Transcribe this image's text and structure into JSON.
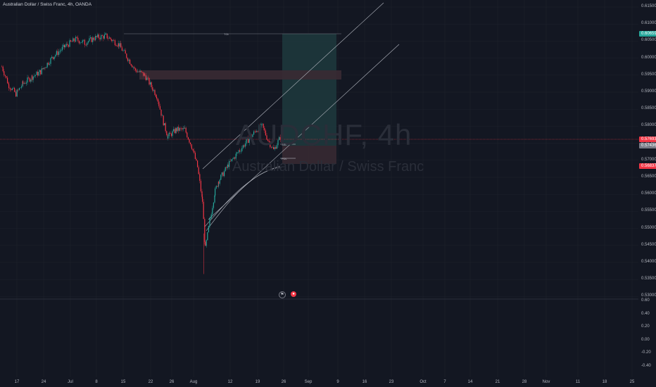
{
  "symbol_title": "Australian Dollar / Swiss Franc, 4h, OANDA",
  "watermark": {
    "ticker": "AUDCHF, 4h",
    "name": "Australian Dollar / Swiss Franc"
  },
  "price_axis": [
    "0.61500",
    "0.61000",
    "0.60500",
    "0.60000",
    "0.59500",
    "0.59000",
    "0.58500",
    "0.58000",
    "0.57500",
    "0.57000",
    "0.56500",
    "0.56000",
    "0.55500",
    "0.55000",
    "0.54500",
    "0.54000",
    "0.53500",
    "0.53000"
  ],
  "price_tags": {
    "target": "0.60659",
    "current": "0.57693",
    "countdown": "0.57436",
    "stop": "0.56837"
  },
  "indicator_axis": [
    "0.60",
    "0.40",
    "0.20",
    "0.00",
    "-0.20",
    "-0.40"
  ],
  "time_axis": [
    "17",
    "24",
    "Jul",
    "8",
    "15",
    "22",
    "26",
    "Aug",
    "12",
    "19",
    "26",
    "Sep",
    "9",
    "16",
    "23",
    "Oct",
    "7",
    "14",
    "21",
    "28",
    "Nov",
    "11",
    "18",
    "25"
  ],
  "annotations": {
    "tp_label": "TGt",
    "entry_label": "SSL",
    "sl_label": "PDL"
  },
  "icons": {
    "flag": "flag-icon",
    "logo": "tradingview-logo-icon"
  },
  "colors": {
    "background": "#131722",
    "up": "#26a69a",
    "down": "#f23645",
    "grid": "#1e222d",
    "long_zone": "#1f3a3d",
    "short_zone": "#3a2a33"
  },
  "chart_data": {
    "type": "candlestick",
    "title": "Australian Dollar / Swiss Franc, 4h, OANDA",
    "ylim": [
      0.53,
      0.615
    ],
    "x_tick_labels": [
      "17",
      "24",
      "Jul",
      "8",
      "15",
      "22",
      "26",
      "Aug",
      "12",
      "19",
      "26",
      "Sep",
      "9",
      "16",
      "23",
      "Oct",
      "7",
      "14",
      "21",
      "28",
      "Nov",
      "11",
      "18",
      "25"
    ],
    "price_path": [
      {
        "x": "Jun 10",
        "y": 0.5975
      },
      {
        "x": "Jun 14",
        "y": 0.592
      },
      {
        "x": "Jun 17",
        "y": 0.5895
      },
      {
        "x": "Jun 20",
        "y": 0.5925
      },
      {
        "x": "Jun 24",
        "y": 0.5945
      },
      {
        "x": "Jun 27",
        "y": 0.596
      },
      {
        "x": "Jul 1",
        "y": 0.6005
      },
      {
        "x": "Jul 3",
        "y": 0.6035
      },
      {
        "x": "Jul 5",
        "y": 0.6055
      },
      {
        "x": "Jul 8",
        "y": 0.6045
      },
      {
        "x": "Jul 11",
        "y": 0.606
      },
      {
        "x": "Jul 13",
        "y": 0.6065
      },
      {
        "x": "Jul 15",
        "y": 0.604
      },
      {
        "x": "Jul 16",
        "y": 0.5965
      },
      {
        "x": "Jul 18",
        "y": 0.595
      },
      {
        "x": "Jul 22",
        "y": 0.589
      },
      {
        "x": "Jul 24",
        "y": 0.58
      },
      {
        "x": "Jul 25",
        "y": 0.577
      },
      {
        "x": "Jul 26",
        "y": 0.579
      },
      {
        "x": "Jul 29",
        "y": 0.579
      },
      {
        "x": "Jul 30",
        "y": 0.574
      },
      {
        "x": "Aug 1",
        "y": 0.568
      },
      {
        "x": "Aug 2",
        "y": 0.558
      },
      {
        "x": "Aug 5",
        "y": 0.544
      },
      {
        "x": "Aug 6",
        "y": 0.553
      },
      {
        "x": "Aug 7",
        "y": 0.561
      },
      {
        "x": "Aug 8",
        "y": 0.564
      },
      {
        "x": "Aug 12",
        "y": 0.569
      },
      {
        "x": "Aug 14",
        "y": 0.573
      },
      {
        "x": "Aug 16",
        "y": 0.576
      },
      {
        "x": "Aug 19",
        "y": 0.579
      },
      {
        "x": "Aug 21",
        "y": 0.58
      },
      {
        "x": "Aug 22",
        "y": 0.576
      },
      {
        "x": "Aug 23",
        "y": 0.573
      },
      {
        "x": "Aug 25",
        "y": 0.5769
      }
    ],
    "levels": [
      {
        "label": "TGt",
        "y": 0.60659
      },
      {
        "label": "SSL",
        "y": 0.5759
      },
      {
        "label": "PDL",
        "y": 0.5715
      }
    ],
    "oscillator_range": [
      -0.4,
      0.6
    ]
  }
}
